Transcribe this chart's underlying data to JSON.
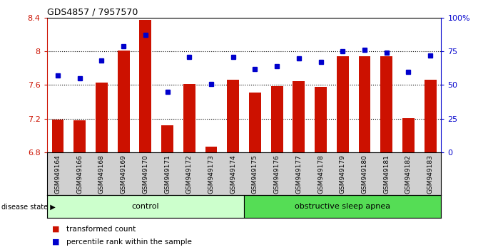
{
  "title": "GDS4857 / 7957570",
  "samples": [
    "GSM949164",
    "GSM949166",
    "GSM949168",
    "GSM949169",
    "GSM949170",
    "GSM949171",
    "GSM949172",
    "GSM949173",
    "GSM949174",
    "GSM949175",
    "GSM949176",
    "GSM949177",
    "GSM949178",
    "GSM949179",
    "GSM949180",
    "GSM949181",
    "GSM949182",
    "GSM949183"
  ],
  "bar_values": [
    7.19,
    7.18,
    7.63,
    8.01,
    8.37,
    7.12,
    7.61,
    6.87,
    7.66,
    7.51,
    7.59,
    7.65,
    7.58,
    7.94,
    7.94,
    7.94,
    7.21,
    7.66
  ],
  "dot_values": [
    57,
    55,
    68,
    79,
    87,
    45,
    71,
    51,
    71,
    62,
    64,
    70,
    67,
    75,
    76,
    74,
    60,
    72
  ],
  "bar_color": "#cc1100",
  "dot_color": "#0000cc",
  "ylim_left": [
    6.8,
    8.4
  ],
  "ylim_right": [
    0,
    100
  ],
  "yticks_left": [
    6.8,
    7.2,
    7.6,
    8.0,
    8.4
  ],
  "yticks_right": [
    0,
    25,
    50,
    75,
    100
  ],
  "ytick_labels_left": [
    "6.8",
    "7.2",
    "7.6",
    "8",
    "8.4"
  ],
  "ytick_labels_right": [
    "0",
    "25",
    "50",
    "75",
    "100%"
  ],
  "baseline": 6.8,
  "control_count": 9,
  "disease_state_label": "disease state",
  "group1_label": "control",
  "group2_label": "obstructive sleep apnea",
  "legend1": "transformed count",
  "legend2": "percentile rank within the sample",
  "bg_color": "#ffffff",
  "plot_bg": "#ffffff",
  "control_bg": "#ccffcc",
  "apnea_bg": "#55dd55",
  "label_area_bg": "#d0d0d0",
  "grid_yticks": [
    7.2,
    7.6,
    8.0
  ],
  "bar_width": 0.55
}
